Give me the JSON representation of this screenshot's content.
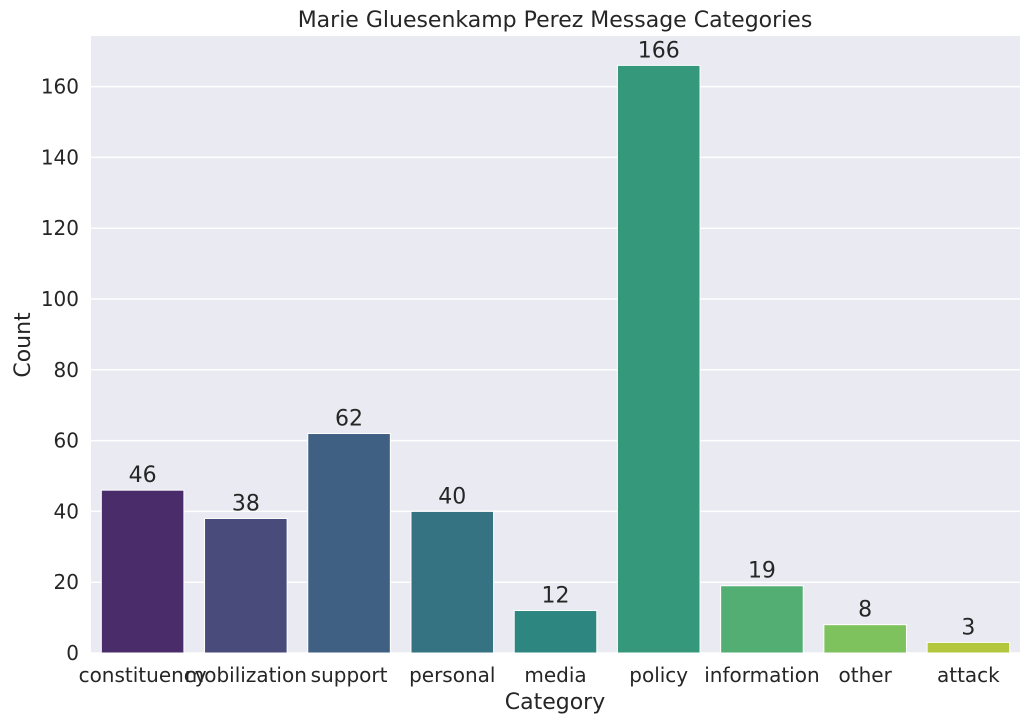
{
  "chart_data": {
    "type": "bar",
    "title": "Marie Gluesenkamp Perez Message Categories",
    "xlabel": "Category",
    "ylabel": "Count",
    "categories": [
      "constituency",
      "mobilization",
      "support",
      "personal",
      "media",
      "policy",
      "information",
      "other",
      "attack"
    ],
    "values": [
      46,
      38,
      62,
      40,
      12,
      166,
      19,
      8,
      3
    ],
    "colors": [
      "#4b2c6b",
      "#494c7b",
      "#406083",
      "#357282",
      "#2d8680",
      "#35987b",
      "#52ae73",
      "#7ec25e",
      "#b3c73c"
    ],
    "ylim": [
      0,
      174.3
    ],
    "yticks": [
      0,
      20,
      40,
      60,
      80,
      100,
      120,
      140,
      160
    ],
    "grid": true,
    "background": "#eaeaf2"
  }
}
